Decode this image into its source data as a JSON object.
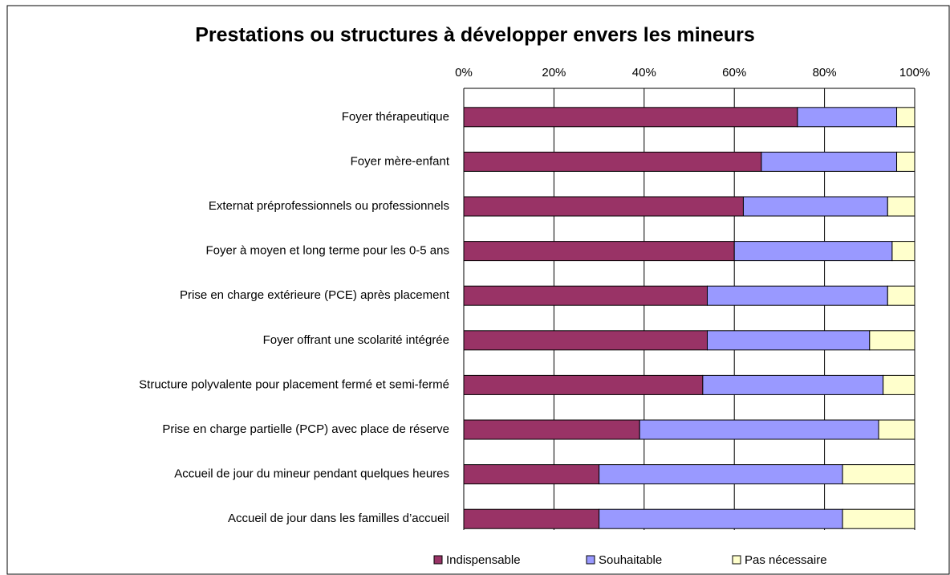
{
  "chart_data": {
    "type": "stacked-barh",
    "title": "Prestations ou structures à développer envers les mineurs",
    "categories": [
      "Foyer thérapeutique",
      "Foyer mère-enfant",
      "Externat préprofessionnels ou professionnels",
      "Foyer à moyen et long terme pour les 0-5 ans",
      "Prise en charge extérieure (PCE) après placement",
      "Foyer offrant une scolarité intégrée",
      "Structure polyvalente pour placement fermé et semi-fermé",
      "Prise en charge partielle (PCP) avec place de réserve",
      "Accueil de jour du mineur pendant quelques heures",
      "Accueil de jour dans les familles d’accueil"
    ],
    "series": [
      {
        "name": "Indispensable",
        "color": "#993366",
        "values": [
          74,
          66,
          62,
          60,
          54,
          54,
          53,
          39,
          30,
          30
        ]
      },
      {
        "name": "Souhaitable",
        "color": "#9999ff",
        "values": [
          22,
          30,
          32,
          35,
          40,
          36,
          40,
          53,
          54,
          54
        ]
      },
      {
        "name": "Pas nécessaire",
        "color": "#ffffcc",
        "values": [
          4,
          4,
          6,
          5,
          6,
          10,
          7,
          8,
          16,
          16
        ]
      }
    ],
    "xlim": [
      0,
      100
    ],
    "xticks": [
      {
        "value": 0,
        "label": "0%"
      },
      {
        "value": 20,
        "label": "20%"
      },
      {
        "value": 40,
        "label": "40%"
      },
      {
        "value": 60,
        "label": "60%"
      },
      {
        "value": 80,
        "label": "80%"
      },
      {
        "value": 100,
        "label": "100%"
      }
    ],
    "grid": true,
    "legend": "bottom"
  }
}
